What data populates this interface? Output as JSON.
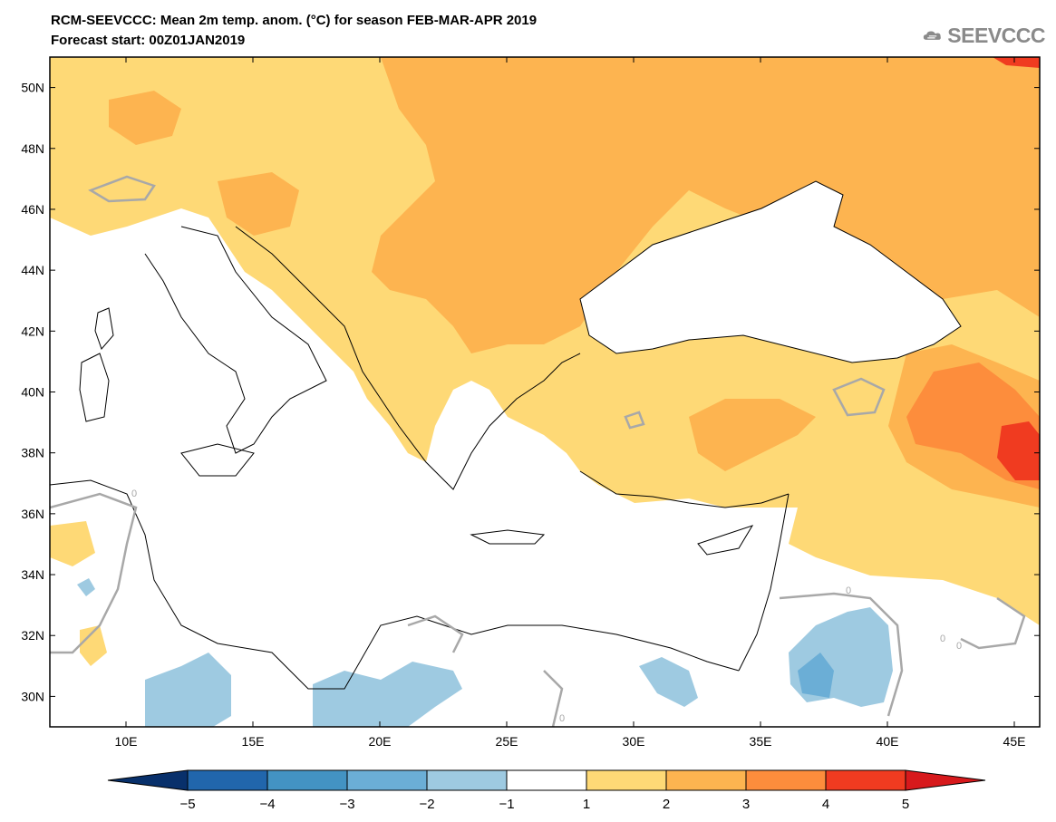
{
  "header": {
    "title_line1": "RCM-SEEVCCC: Mean 2m temp. anom. (°C) for season FEB-MAR-APR 2019",
    "title_line2": "Forecast start: 00Z01JAN2019"
  },
  "logo": {
    "text": "SEEVCCC",
    "icon": "cloud-icon"
  },
  "map": {
    "lon_labels": [
      "10E",
      "15E",
      "20E",
      "25E",
      "30E",
      "35E",
      "40E",
      "45E"
    ],
    "lat_labels": [
      "50N",
      "48N",
      "46N",
      "44N",
      "42N",
      "40N",
      "38N",
      "36N",
      "34N",
      "32N",
      "30N"
    ],
    "lon_range": [
      7,
      46
    ],
    "lat_range": [
      29,
      51
    ],
    "contour_labels": [
      "0",
      "0",
      "0",
      "0",
      "0"
    ]
  },
  "colorbar": {
    "tick_labels": [
      "−5",
      "−4",
      "−3",
      "−2",
      "−1",
      "1",
      "2",
      "3",
      "4",
      "5"
    ],
    "colors": [
      "#08306b",
      "#2166ac",
      "#4393c3",
      "#6baed6",
      "#9ecae1",
      "#ffffff",
      "#fed976",
      "#fdb450",
      "#fd8d3c",
      "#f03b20",
      "#d7191c"
    ]
  }
}
